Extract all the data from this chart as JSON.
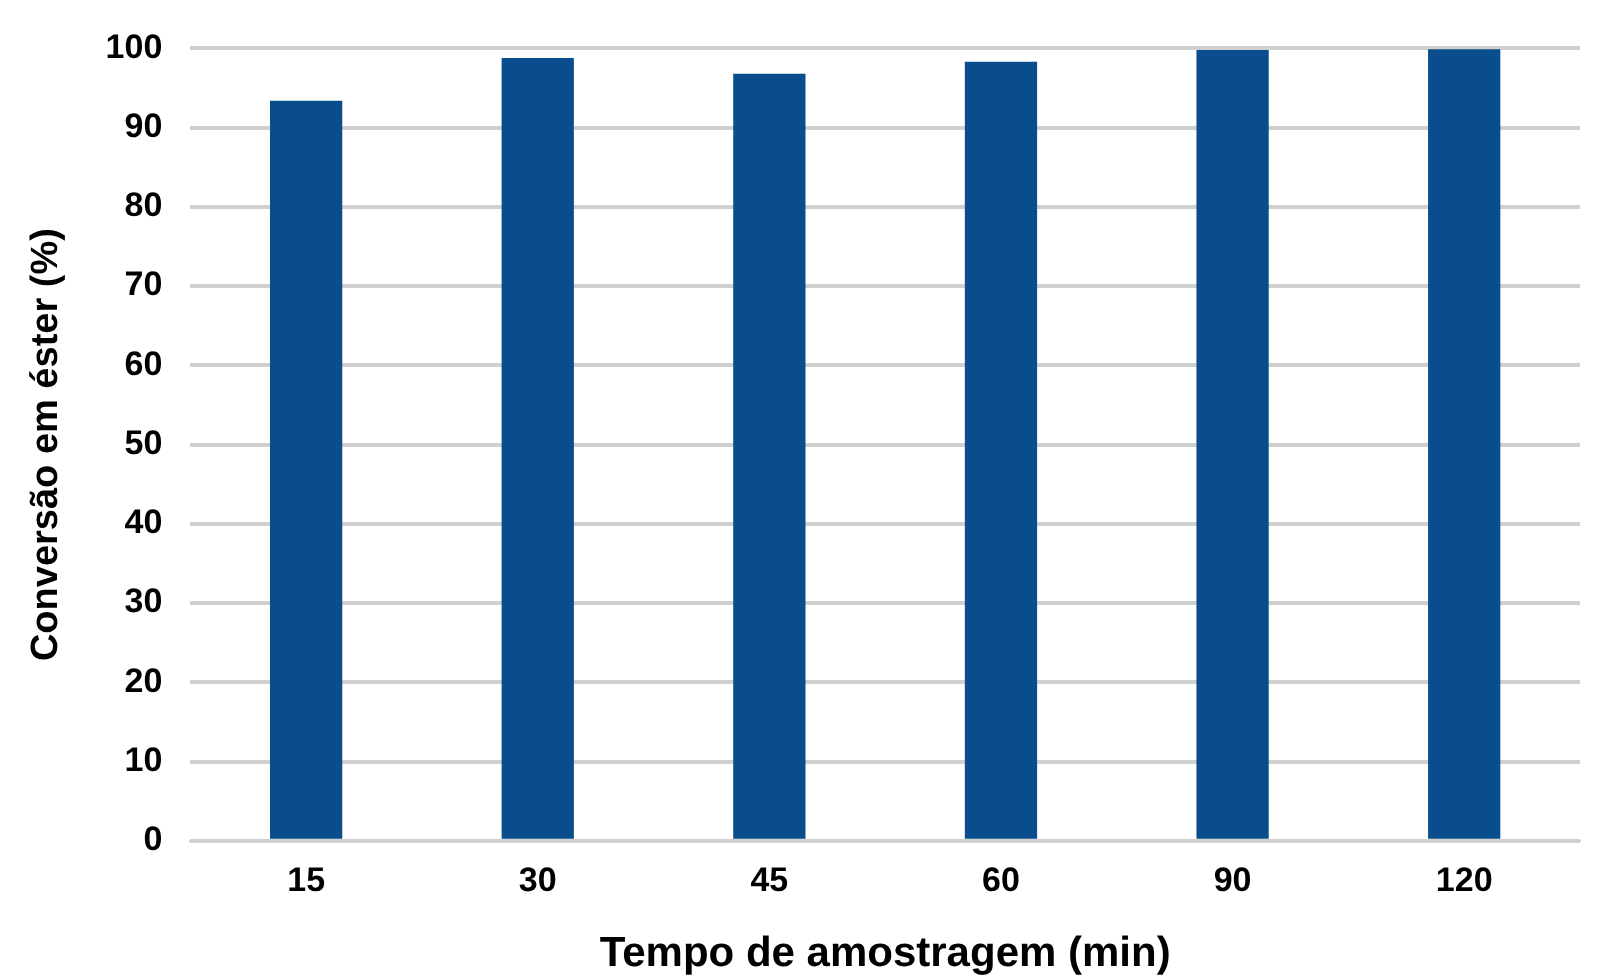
{
  "chart_data": {
    "type": "bar",
    "xlabel": "Tempo de amostragem (min)",
    "ylabel": "Conversão em éster (%)",
    "categories": [
      "15",
      "30",
      "45",
      "60",
      "90",
      "120"
    ],
    "values": [
      93.4,
      98.8,
      96.8,
      98.3,
      99.8,
      99.9
    ],
    "color": "#0a4d8c",
    "ylim": [
      0,
      100
    ],
    "yticks": [
      0,
      10,
      20,
      30,
      40,
      50,
      60,
      70,
      80,
      90,
      100
    ],
    "grid": "y",
    "legend": false
  }
}
